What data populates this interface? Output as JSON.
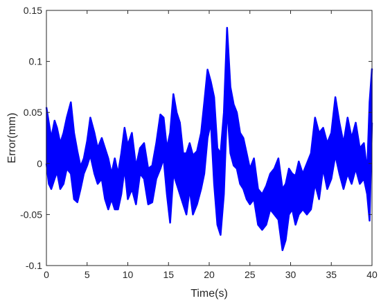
{
  "chart_data": {
    "type": "line",
    "title": "",
    "xlabel": "Time(s)",
    "ylabel": "Error(mm)",
    "xlim": [
      0,
      40
    ],
    "ylim": [
      -0.1,
      0.15
    ],
    "x_ticks": [
      0,
      5,
      10,
      15,
      20,
      25,
      30,
      35,
      40
    ],
    "y_ticks": [
      -0.1,
      -0.05,
      0,
      0.05,
      0.1,
      0.15
    ],
    "x_tick_labels": [
      "0",
      "5",
      "10",
      "15",
      "20",
      "25",
      "30",
      "35",
      "40"
    ],
    "y_tick_labels": [
      "-0.1",
      "-0.05",
      "0",
      "0.05",
      "0.1",
      "0.15"
    ],
    "grid": false,
    "legend": "none",
    "colors": {
      "series": "#0000ff",
      "axes": "#262626",
      "background": "#ffffff"
    },
    "series": [
      {
        "envelope_x": [
          0,
          0.3,
          0.6,
          1.0,
          1.3,
          1.7,
          2.1,
          2.5,
          3.0,
          3.4,
          3.8,
          4.2,
          4.6,
          5.0,
          5.4,
          5.9,
          6.3,
          6.8,
          7.2,
          7.6,
          8.0,
          8.4,
          8.8,
          9.2,
          9.6,
          10.0,
          10.5,
          11.0,
          11.5,
          12.0,
          12.5,
          13.0,
          13.5,
          14.0,
          14.4,
          14.8,
          15.2,
          15.6,
          16.0,
          16.4,
          16.8,
          17.2,
          17.6,
          18.0,
          18.5,
          19.0,
          19.4,
          19.8,
          20.2,
          20.6,
          21.0,
          21.4,
          21.8,
          22.2,
          22.6,
          23.0,
          23.4,
          23.8,
          24.2,
          24.6,
          25.0,
          25.5,
          26.0,
          26.5,
          27.0,
          27.5,
          28.0,
          28.5,
          29.0,
          29.4,
          29.8,
          30.2,
          30.6,
          31.0,
          31.5,
          32.0,
          32.5,
          33.0,
          33.5,
          34.0,
          34.5,
          35.0,
          35.5,
          36.0,
          36.5,
          37.0,
          37.5,
          38.0,
          38.5,
          39.0,
          39.4,
          39.7,
          40.0
        ],
        "envelope_upper": [
          0.055,
          0.04,
          0.025,
          0.042,
          0.035,
          0.02,
          0.03,
          0.045,
          0.06,
          0.03,
          0.012,
          -0.003,
          0.005,
          0.022,
          0.045,
          0.03,
          0.015,
          0.025,
          0.015,
          0.005,
          -0.01,
          0.005,
          -0.01,
          0.01,
          0.035,
          0.018,
          0.03,
          -0.003,
          0.015,
          0.02,
          -0.005,
          -0.002,
          0.02,
          0.048,
          0.045,
          0.015,
          0.03,
          0.068,
          0.05,
          0.04,
          0.01,
          0.01,
          0.02,
          0.008,
          0.012,
          0.03,
          0.06,
          0.092,
          0.08,
          0.065,
          0.015,
          0.01,
          0.05,
          0.133,
          0.075,
          0.058,
          0.05,
          0.03,
          0.025,
          0.01,
          -0.005,
          0.005,
          -0.025,
          -0.03,
          -0.022,
          -0.01,
          -0.005,
          0.005,
          -0.025,
          -0.02,
          -0.005,
          -0.01,
          -0.012,
          0.002,
          -0.01,
          0.0,
          0.01,
          0.045,
          0.03,
          0.035,
          0.02,
          0.03,
          0.065,
          0.04,
          0.02,
          0.045,
          0.025,
          0.04,
          0.015,
          0.02,
          -0.008,
          0.06,
          0.093
        ],
        "envelope_lower": [
          0.0,
          -0.02,
          -0.025,
          -0.015,
          -0.008,
          -0.025,
          -0.02,
          -0.005,
          -0.01,
          -0.035,
          -0.038,
          -0.025,
          -0.01,
          -0.002,
          0.008,
          -0.01,
          -0.02,
          -0.015,
          -0.035,
          -0.045,
          -0.035,
          -0.045,
          -0.045,
          -0.03,
          -0.005,
          -0.035,
          -0.025,
          -0.04,
          -0.01,
          -0.015,
          -0.04,
          -0.038,
          -0.015,
          -0.005,
          0.005,
          -0.03,
          -0.058,
          -0.01,
          -0.02,
          -0.03,
          -0.04,
          -0.05,
          -0.025,
          -0.05,
          -0.04,
          -0.025,
          -0.01,
          0.025,
          0.04,
          -0.02,
          -0.06,
          -0.07,
          -0.03,
          0.055,
          0.01,
          -0.002,
          -0.005,
          -0.02,
          -0.025,
          -0.035,
          -0.04,
          -0.035,
          -0.06,
          -0.065,
          -0.06,
          -0.045,
          -0.05,
          -0.055,
          -0.085,
          -0.075,
          -0.05,
          -0.045,
          -0.06,
          -0.05,
          -0.045,
          -0.05,
          -0.045,
          -0.02,
          -0.035,
          -0.005,
          -0.025,
          -0.015,
          0.008,
          -0.01,
          -0.025,
          -0.01,
          -0.02,
          -0.005,
          -0.02,
          -0.015,
          -0.03,
          -0.056,
          0.04
        ]
      }
    ]
  }
}
